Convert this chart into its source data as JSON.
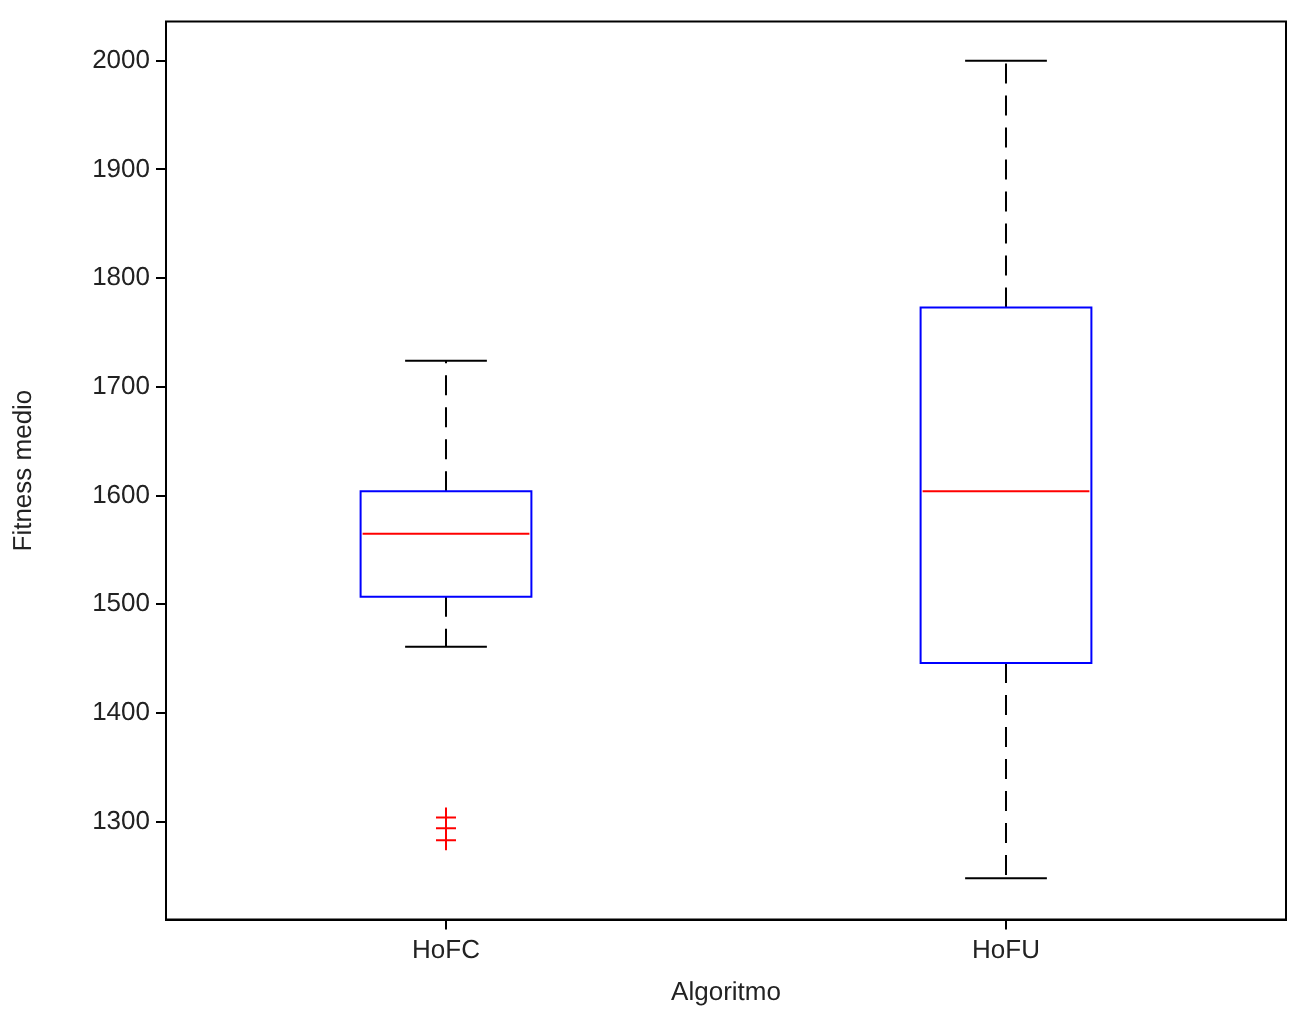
{
  "chart_data": {
    "type": "box",
    "xlabel": "Algoritmo",
    "ylabel": "Fitness medio",
    "categories": [
      "HoFC",
      "HoFU"
    ],
    "boxes": [
      {
        "low": 1461,
        "q1": 1507,
        "median": 1565,
        "q3": 1604,
        "high": 1724,
        "outliers": [
          1304,
          1294,
          1283
        ]
      },
      {
        "low": 1248,
        "q1": 1446,
        "median": 1604,
        "q3": 1773,
        "high": 2000
      }
    ],
    "color": "#0000ff",
    "marker": "cross",
    "ylim": [
      1210,
      2036
    ],
    "yticks": [
      1300,
      1400,
      1500,
      1600,
      1700,
      1800,
      1900,
      2000
    ]
  }
}
